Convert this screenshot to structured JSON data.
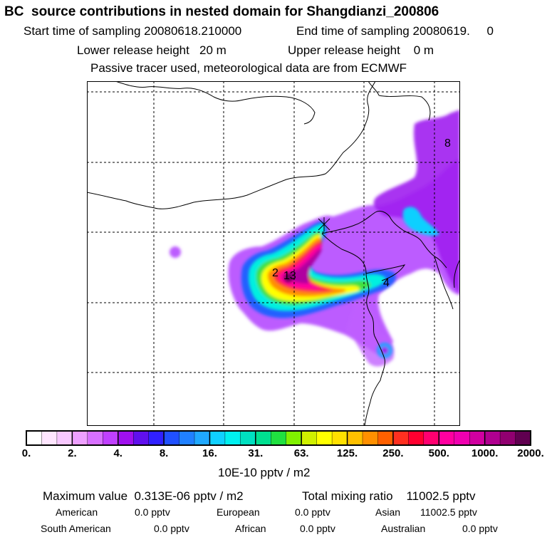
{
  "header": {
    "title": "BC  source contributions in nested domain for Shangdianzi_200806",
    "start_label": "Start time of sampling",
    "start_value": "20080618.210000",
    "end_label": "End time of sampling",
    "end_value": "20080619.     0",
    "lower_label": "Lower release height",
    "lower_value": "20 m",
    "upper_label": "Upper release height",
    "upper_value": "0 m",
    "note": "Passive tracer used, meteorological data are from ECMWF"
  },
  "map": {
    "site_labels": [
      "2",
      "13",
      "4",
      "8"
    ]
  },
  "colorbar": {
    "ticks": [
      "0.",
      "2.",
      "4.",
      "8.",
      "16.",
      "31.",
      "63.",
      "125.",
      "250.",
      "500.",
      "1000.",
      "2000."
    ],
    "units": "10E-10 pptv / m2",
    "colors": [
      "#ffffff",
      "#ffe6ff",
      "#f8c8ff",
      "#eea0ff",
      "#d870ff",
      "#c040ff",
      "#a010ee",
      "#6010ee",
      "#3020ff",
      "#2050ff",
      "#2080ff",
      "#20a8ff",
      "#10d0ff",
      "#00f0f0",
      "#00e0c0",
      "#00e090",
      "#20e040",
      "#80f000",
      "#d0f000",
      "#ffff00",
      "#ffe000",
      "#ffc000",
      "#ff9000",
      "#ff6000",
      "#ff3020",
      "#ff0030",
      "#ff0070",
      "#ff00a0",
      "#f000b0",
      "#d000a0",
      "#b00090",
      "#900070",
      "#600050"
    ]
  },
  "summary": {
    "max_label": "Maximum value",
    "max_value": "0.313E-06 pptv / m2",
    "total_label": "Total mixing ratio",
    "total_value": "11002.5 pptv",
    "regions": [
      {
        "name": "American",
        "value": "0.0 pptv"
      },
      {
        "name": "European",
        "value": "0.0 pptv"
      },
      {
        "name": "Asian",
        "value": "11002.5 pptv"
      },
      {
        "name": "South American",
        "value": "0.0 pptv"
      },
      {
        "name": "African",
        "value": "0.0 pptv"
      },
      {
        "name": "Australian",
        "value": "0.0 pptv"
      }
    ]
  }
}
